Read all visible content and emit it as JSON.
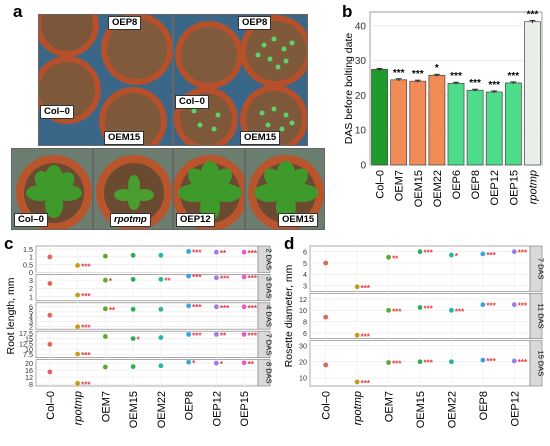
{
  "panels": {
    "a": "a",
    "b": "b",
    "c": "c",
    "d": "d"
  },
  "photos": {
    "seed_left": {
      "top": "OEP8",
      "left": "Col–0",
      "bottom": "OEM15"
    },
    "seed_right": {
      "top": "OEP8",
      "left": "Col–0",
      "bottom": "OEM15"
    },
    "rosettes": [
      "Col–0",
      "rpotmp",
      "OEP12",
      "OEM15"
    ]
  },
  "colors": {
    "col0": "#1e9b2a",
    "rpotmp": "#e8efe9",
    "oem": "#f08a57",
    "oep": "#4cdc8c",
    "sig": "#e8343c",
    "soil": "#7a5638",
    "pot": "#c2542c",
    "leaf": "#3e9b2b"
  },
  "chart_data": [
    {
      "type": "bar",
      "ylabel": "DAS before bolting date",
      "categories": [
        "Col–0",
        "OEM7",
        "OEM15",
        "OEM22",
        "OEP6",
        "OEP8",
        "OEP12",
        "OEP15",
        "rpotmp"
      ],
      "values": [
        27.5,
        24.5,
        24.1,
        25.8,
        23.5,
        21.5,
        21.0,
        23.6,
        41.2
      ],
      "errors": [
        0.3,
        0.3,
        0.3,
        0.3,
        0.3,
        0.3,
        0.3,
        0.3,
        0.4
      ],
      "significance": [
        "",
        "***",
        "***",
        "*",
        "***",
        "***",
        "***",
        "***",
        "***"
      ],
      "ylim": [
        0,
        44
      ],
      "yticks": [
        0,
        10,
        20,
        30,
        40
      ],
      "grid": true
    },
    {
      "type": "scatter",
      "ylabel": "Root length, mm",
      "categories": [
        "Col–0",
        "rpotmp",
        "OEM7",
        "OEM15",
        "OEM22",
        "OEP8",
        "OEP12",
        "OEP15"
      ],
      "facets": [
        {
          "label": "2 DAS",
          "yticks": [
            0.0,
            0.5,
            1.0,
            1.5
          ],
          "ylim": [
            0.0,
            1.7
          ],
          "values": [
            1.0,
            0.45,
            1.05,
            1.1,
            1.1,
            1.35,
            1.3,
            1.3
          ],
          "significance": [
            "",
            "***",
            "",
            "",
            "",
            "***",
            "**",
            "***"
          ]
        },
        {
          "label": "3 DAS",
          "yticks": [
            1,
            2,
            3
          ],
          "ylim": [
            0.5,
            3.7
          ],
          "values": [
            2.6,
            1.2,
            3.0,
            3.1,
            3.1,
            3.5,
            3.3,
            3.4
          ],
          "significance": [
            "",
            "***",
            "*",
            "",
            "**",
            "***",
            "***",
            "***"
          ]
        },
        {
          "label": "4 DAS",
          "yticks": [
            2,
            3,
            4,
            5,
            6
          ],
          "ylim": [
            1.5,
            6.8
          ],
          "values": [
            4.3,
            2.0,
            5.6,
            5.5,
            5.5,
            6.2,
            6.0,
            6.0
          ],
          "significance": [
            "",
            "***",
            "**",
            "",
            "",
            "***",
            "***",
            "***"
          ]
        },
        {
          "label": "7 DAS",
          "yticks": [
            7.5,
            10.0,
            12.5,
            15.0,
            17.5
          ],
          "ylim": [
            6.0,
            18.5
          ],
          "values": [
            12.3,
            7.7,
            16.0,
            15.0,
            15.5,
            17.0,
            17.0,
            17.0
          ],
          "significance": [
            "",
            "***",
            "",
            "*",
            "",
            "***",
            "**",
            "***"
          ]
        },
        {
          "label": "8 DAS",
          "yticks": [
            8,
            12,
            16,
            20
          ],
          "ylim": [
            7.0,
            22.0
          ],
          "values": [
            15.0,
            8.5,
            17.8,
            18.0,
            18.5,
            20.5,
            20.0,
            20.2
          ],
          "significance": [
            "",
            "***",
            "",
            "",
            "",
            "*",
            "*",
            "**"
          ]
        }
      ]
    },
    {
      "type": "scatter",
      "ylabel": "Rosette diameter, mm",
      "categories": [
        "Col–0",
        "rpotmp",
        "OEM7",
        "OEM15",
        "OEM22",
        "OEP8",
        "OEP12"
      ],
      "facets": [
        {
          "label": "7 DAS",
          "yticks": [
            3,
            4,
            5,
            6
          ],
          "ylim": [
            2.5,
            6.5
          ],
          "values": [
            5.0,
            2.9,
            5.5,
            6.0,
            5.7,
            5.8,
            6.0
          ],
          "significance": [
            "",
            "***",
            "**",
            "***",
            "*",
            "***",
            "***"
          ]
        },
        {
          "label": "11 DAS",
          "yticks": [
            6,
            8,
            10,
            12
          ],
          "ylim": [
            5.0,
            13.0
          ],
          "values": [
            8.8,
            5.6,
            10.0,
            10.5,
            10.0,
            11.0,
            11.0
          ],
          "significance": [
            "",
            "***",
            "***",
            "***",
            "***",
            "***",
            "***"
          ]
        },
        {
          "label": "15 DAS",
          "yticks": [
            10,
            20,
            30
          ],
          "ylim": [
            5.0,
            33.0
          ],
          "values": [
            18.0,
            7.5,
            19.5,
            20.0,
            20.0,
            21.0,
            20.5
          ],
          "significance": [
            "",
            "***",
            "***",
            "***",
            "",
            "***",
            "***"
          ]
        }
      ]
    }
  ]
}
